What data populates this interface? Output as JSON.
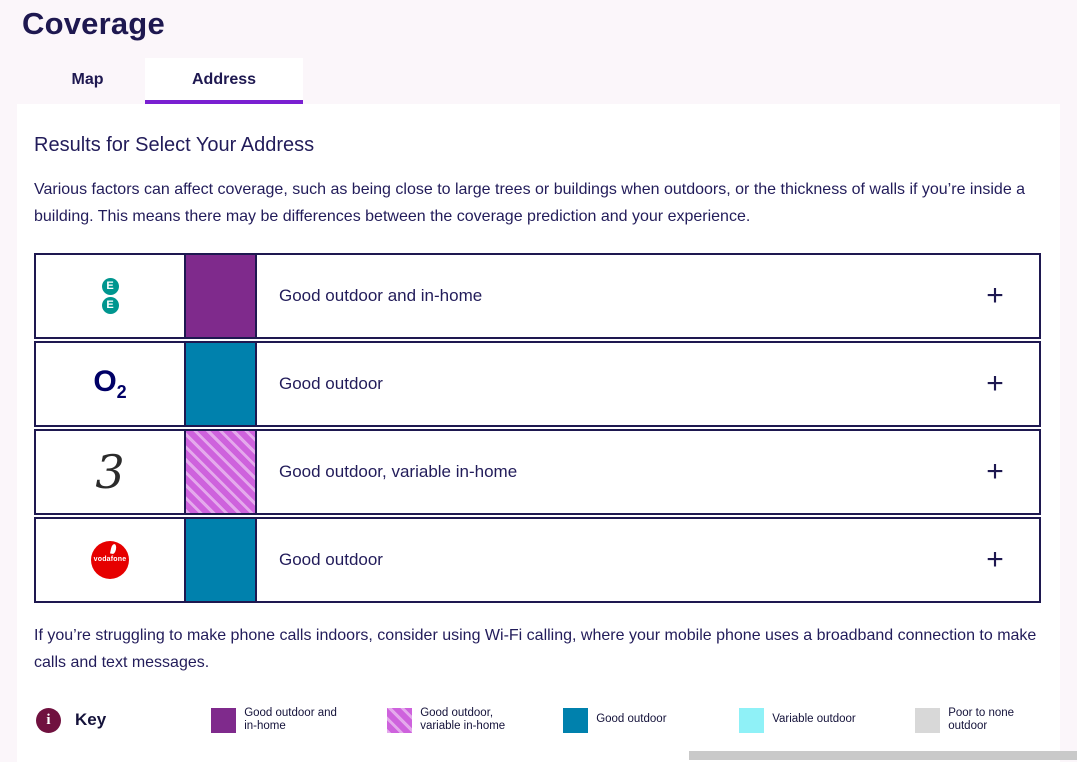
{
  "page": {
    "title": "Coverage",
    "tabs": [
      {
        "label": "Map",
        "active": false
      },
      {
        "label": "Address",
        "active": true
      }
    ]
  },
  "ui": {
    "expand_icon": "+",
    "info_icon": "i"
  },
  "colors": {
    "navy_text": "#221c5a",
    "tab_accent_purple": "#7a1fd1",
    "good_outdoor_and_in_home": "#7f2a8c",
    "good_outdoor_variable_in_home": "#ce62dd",
    "good_outdoor": "#0081ad",
    "variable_outdoor": "#8ff1f7",
    "poor_to_none_outdoor": "#d8d8d8",
    "ee_teal": "#00968f",
    "o2_blue": "#000066",
    "vodafone_red": "#e60000",
    "info_maroon": "#70113f"
  },
  "results": {
    "heading": "Results for Select Your Address",
    "intro": "Various factors can affect coverage, such as being close to large trees or buildings when outdoors, or the thickness of walls if you’re inside a building. This means there may be differences between the coverage prediction and your experience.",
    "rows": [
      {
        "operator": "EE",
        "status": "Good outdoor and in-home",
        "swatch": {
          "color": "#7f2a8c"
        },
        "logo": {
          "letters": [
            "E",
            "E"
          ]
        }
      },
      {
        "operator": "O2",
        "status": "Good outdoor",
        "swatch": {
          "color": "#0081ad"
        },
        "logo": {
          "text": "O",
          "sub": "2"
        }
      },
      {
        "operator": "Three",
        "status": "Good outdoor, variable in-home",
        "swatch": {
          "color": "#ce62dd",
          "pattern": "hatched"
        },
        "logo": {
          "text": "3"
        }
      },
      {
        "operator": "Vodafone",
        "status": "Good outdoor",
        "swatch": {
          "color": "#0081ad"
        },
        "logo": {
          "text": "vodafone"
        }
      }
    ],
    "footer": "If you’re struggling to make phone calls indoors, consider using Wi-Fi calling, where your mobile phone uses a broadband connection to make calls and text messages."
  },
  "key": {
    "label": "Key",
    "items": [
      {
        "label": "Good outdoor and in-home",
        "swatch": {
          "color": "#7f2a8c"
        }
      },
      {
        "label": "Good outdoor, variable in-home",
        "swatch": {
          "color": "#ce62dd",
          "pattern": "hatched"
        }
      },
      {
        "label": "Good outdoor",
        "swatch": {
          "color": "#0081ad"
        }
      },
      {
        "label": "Variable outdoor",
        "swatch": {
          "color": "#8ff1f7"
        }
      },
      {
        "label": "Poor to none outdoor",
        "swatch": {
          "color": "#d8d8d8"
        }
      }
    ]
  }
}
